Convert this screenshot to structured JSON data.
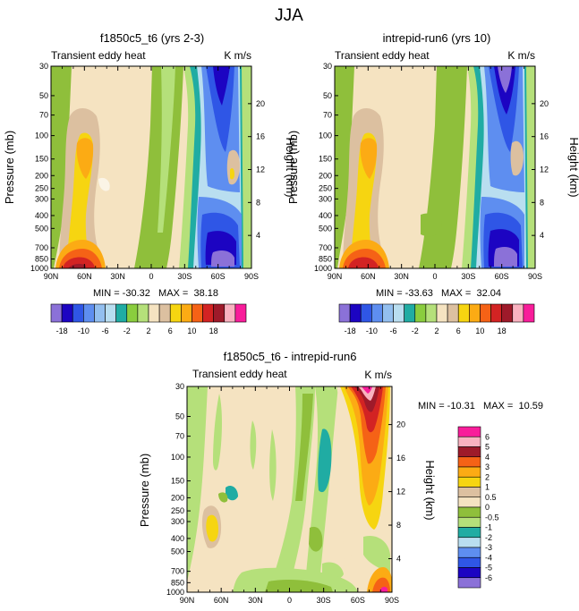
{
  "figure_title": "JJA",
  "chart_data": [
    {
      "type": "contour",
      "title": "f1850c5_t6 (yrs 2-3)",
      "left_label": "Transient eddy heat",
      "right_label": "K m/s",
      "ylabel": "Pressure (mb)",
      "y2label": "Height (km)",
      "x_ticks": [
        "90N",
        "60N",
        "30N",
        "0",
        "30S",
        "60S",
        "90S"
      ],
      "y_ticks": [
        "30",
        "50",
        "70",
        "100",
        "150",
        "200",
        "250",
        "300",
        "400",
        "500",
        "700",
        "850",
        "1000"
      ],
      "height_ticks": [
        "4",
        "8",
        "12",
        "16",
        "20"
      ],
      "min_max_text": "MIN = -30.32   MAX =  38.18",
      "min": -30.32,
      "max": 38.18,
      "colorbar_labels": [
        "-18",
        "-10",
        "-6",
        "-2",
        "2",
        "6",
        "10",
        "18"
      ]
    },
    {
      "type": "contour",
      "title": "intrepid-run6 (yrs 10)",
      "left_label": "Transient eddy heat",
      "right_label": "K m/s",
      "ylabel": "Pressure (mb)",
      "y2label": "Height (km)",
      "x_ticks": [
        "90N",
        "60N",
        "30N",
        "0",
        "30S",
        "60S",
        "90S"
      ],
      "y_ticks": [
        "30",
        "50",
        "70",
        "100",
        "150",
        "200",
        "250",
        "300",
        "400",
        "500",
        "700",
        "850",
        "1000"
      ],
      "height_ticks": [
        "4",
        "8",
        "12",
        "16",
        "20"
      ],
      "min_max_text": "MIN = -33.63   MAX =  32.04",
      "min": -33.63,
      "max": 32.04,
      "colorbar_labels": [
        "-18",
        "-10",
        "-6",
        "-2",
        "2",
        "6",
        "10",
        "18"
      ]
    },
    {
      "type": "contour",
      "title": "f1850c5_t6 - intrepid-run6",
      "left_label": "Transient eddy heat",
      "right_label": "K m/s",
      "ylabel": "Pressure (mb)",
      "y2label": "Height (km)",
      "x_ticks": [
        "90N",
        "60N",
        "30N",
        "0",
        "30S",
        "60S",
        "90S"
      ],
      "y_ticks": [
        "30",
        "50",
        "70",
        "100",
        "150",
        "200",
        "250",
        "300",
        "400",
        "500",
        "700",
        "850",
        "1000"
      ],
      "height_ticks": [
        "4",
        "8",
        "12",
        "16",
        "20"
      ],
      "min_max_text": "MIN = -10.31   MAX =  10.59",
      "min": -10.31,
      "max": 10.59,
      "colorbar_labels": [
        "6",
        "5",
        "4",
        "3",
        "2",
        "1",
        "0.5",
        "0",
        "-0.5",
        "-1",
        "-2",
        "-3",
        "-4",
        "-5",
        "-6"
      ]
    }
  ],
  "colors": {
    "abs_scale": [
      "#8b71d8",
      "#1c04c2",
      "#2f56e6",
      "#5e8ef0",
      "#93bfef",
      "#b9def0",
      "#20aca3",
      "#8acd3e",
      "#b5e07a",
      "#f5e3c1",
      "#dcc0a0",
      "#f6d511",
      "#fcab14",
      "#f56216",
      "#d32323",
      "#9e1a2a",
      "#f9b2c0",
      "#f81d9a"
    ],
    "diff_scale": [
      "#f81d9a",
      "#f9b2c0",
      "#9e1a2a",
      "#f56216",
      "#fcab14",
      "#f6d511",
      "#dcc0a0",
      "#f5e3c1",
      "#8fbf3b",
      "#b5e07a",
      "#20aca3",
      "#b9def0",
      "#5e8ef0",
      "#2f56e6",
      "#1c04c2",
      "#8b71d8"
    ]
  }
}
